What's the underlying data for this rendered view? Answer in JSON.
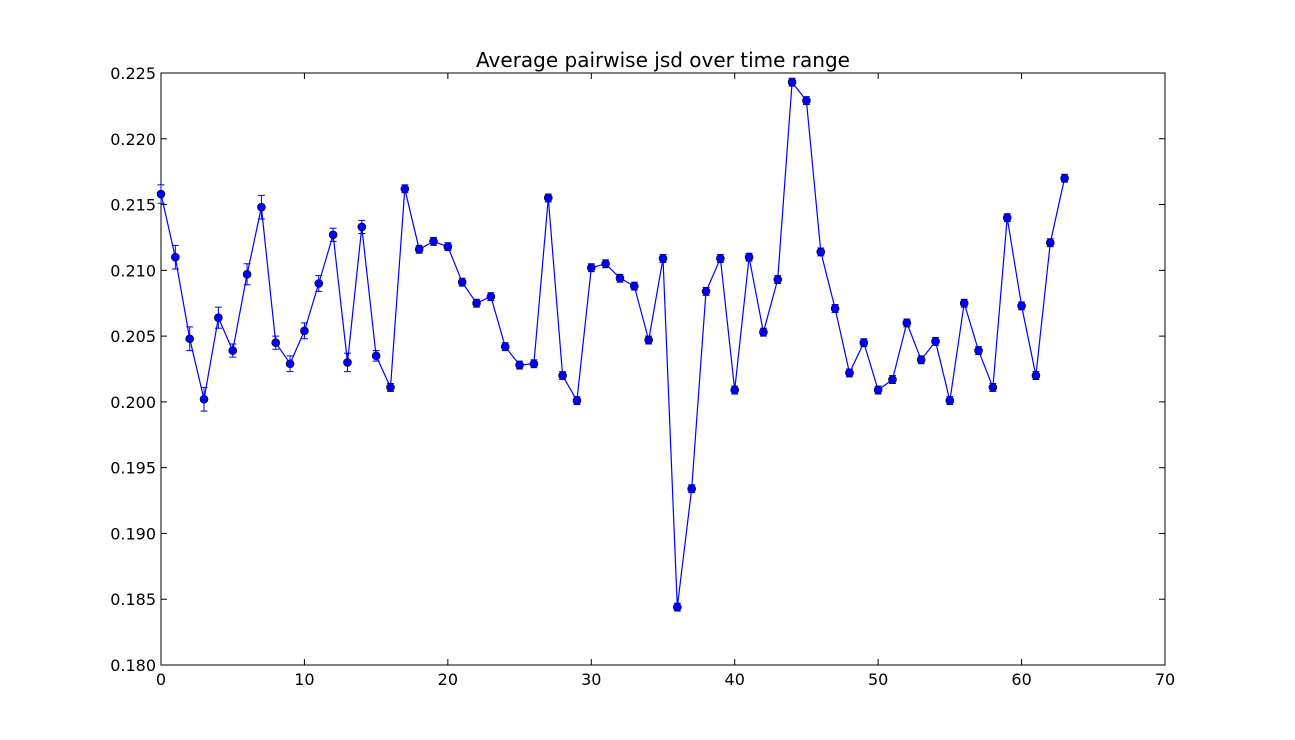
{
  "chart_data": {
    "type": "line",
    "title": "Average pairwise jsd over time range",
    "xlabel": "",
    "ylabel": "",
    "xlim": [
      0,
      70
    ],
    "ylim": [
      0.18,
      0.225
    ],
    "grid": false,
    "legend": "none",
    "x_ticks": [
      "0",
      "10",
      "20",
      "30",
      "40",
      "50",
      "60",
      "70"
    ],
    "y_ticks": [
      "0.180",
      "0.185",
      "0.190",
      "0.195",
      "0.200",
      "0.205",
      "0.210",
      "0.215",
      "0.220",
      "0.225"
    ],
    "line_color": "#0000ff",
    "marker_color": "#0000ff",
    "series": [
      {
        "x": [
          0,
          1,
          2,
          3,
          4,
          5,
          6,
          7,
          8,
          9,
          10,
          11,
          12,
          13,
          14,
          15,
          16,
          17,
          18,
          19,
          20,
          21,
          22,
          23,
          24,
          25,
          26,
          27,
          28,
          29,
          30,
          31,
          32,
          33,
          34,
          35,
          36,
          37,
          38,
          39,
          40,
          41,
          42,
          43,
          44,
          45,
          46,
          47,
          48,
          49,
          50,
          51,
          52,
          53,
          54,
          55,
          56,
          57,
          58,
          59,
          60,
          61,
          62,
          63
        ],
        "y": [
          0.2158,
          0.211,
          0.2048,
          0.2002,
          0.2064,
          0.2039,
          0.2097,
          0.2148,
          0.2045,
          0.2029,
          0.2054,
          0.209,
          0.2127,
          0.203,
          0.2133,
          0.2035,
          0.2011,
          0.2162,
          0.2116,
          0.2122,
          0.2118,
          0.2091,
          0.2075,
          0.208,
          0.2042,
          0.2028,
          0.2029,
          0.2155,
          0.202,
          0.2001,
          0.2102,
          0.2105,
          0.2094,
          0.2088,
          0.2047,
          0.2109,
          0.1844,
          0.1934,
          0.2084,
          0.2109,
          0.2009,
          0.211,
          0.2053,
          0.2093,
          0.2243,
          0.2229,
          0.2114,
          0.2071,
          0.2022,
          0.2045,
          0.2009,
          0.2017,
          0.206,
          0.2032,
          0.2046,
          0.2001,
          0.2075,
          0.2039,
          0.2011,
          0.214,
          0.2073,
          0.202,
          0.2121,
          0.217
        ],
        "err": [
          0.0007,
          0.0009,
          0.0009,
          0.0009,
          0.0008,
          0.0005,
          0.0008,
          0.0009,
          0.0005,
          0.0006,
          0.0006,
          0.0006,
          0.0005,
          0.0007,
          0.0005,
          0.0004,
          0.0003,
          0.0003,
          0.0003,
          0.0003,
          0.0003,
          0.0003,
          0.0003,
          0.0003,
          0.0003,
          0.0003,
          0.0003,
          0.0003,
          0.0003,
          0.0003,
          0.0003,
          0.0003,
          0.0003,
          0.0003,
          0.0003,
          0.0003,
          0.0003,
          0.0003,
          0.0003,
          0.0003,
          0.0003,
          0.0003,
          0.0003,
          0.0003,
          0.0003,
          0.0003,
          0.0003,
          0.0003,
          0.0003,
          0.0003,
          0.0003,
          0.0003,
          0.0003,
          0.0003,
          0.0003,
          0.0003,
          0.0003,
          0.0003,
          0.0003,
          0.0003,
          0.0003,
          0.0003,
          0.0003,
          0.0003
        ]
      }
    ]
  }
}
